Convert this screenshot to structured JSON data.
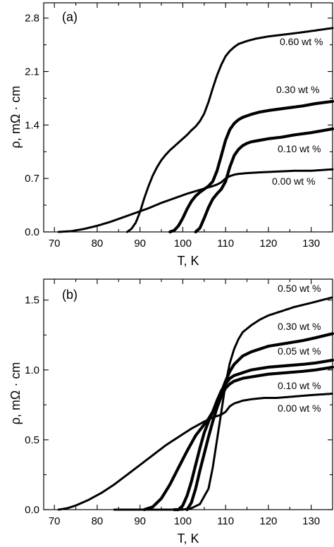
{
  "chart_data": [
    {
      "type": "line",
      "panel_tag": "(a)",
      "xlabel": "T, K",
      "ylabel": "ρ, mΩ · cm",
      "xlim": [
        67.5,
        135
      ],
      "ylim": [
        0,
        3.0
      ],
      "xticks": [
        70,
        80,
        90,
        100,
        110,
        120,
        130
      ],
      "yticks": [
        0.0,
        0.7,
        1.4,
        2.1,
        2.8
      ],
      "ytick_labels": [
        "0.0",
        "0.7",
        "1.4",
        "2.1",
        "2.8"
      ],
      "series": [
        {
          "name": "0.60 wt %",
          "x": [
            87,
            88,
            89,
            90,
            91,
            92,
            93,
            94,
            95,
            96,
            97,
            98,
            99,
            100,
            101,
            102,
            103,
            104,
            105,
            106,
            107,
            108,
            109,
            110,
            111,
            112,
            113,
            114,
            115,
            117,
            120,
            123,
            126,
            130,
            135
          ],
          "y": [
            0.0,
            0.04,
            0.12,
            0.26,
            0.44,
            0.6,
            0.74,
            0.85,
            0.94,
            1.01,
            1.07,
            1.12,
            1.17,
            1.22,
            1.27,
            1.33,
            1.38,
            1.45,
            1.55,
            1.7,
            1.88,
            2.05,
            2.19,
            2.3,
            2.37,
            2.42,
            2.46,
            2.48,
            2.5,
            2.53,
            2.56,
            2.58,
            2.6,
            2.63,
            2.67
          ]
        },
        {
          "name": "0.30 wt %",
          "x": [
            97,
            98,
            99,
            100,
            101,
            102,
            103,
            104,
            105,
            106,
            107,
            108,
            109,
            110,
            111,
            112,
            113,
            114,
            116,
            118,
            120,
            124,
            128,
            131,
            135
          ],
          "y": [
            0.0,
            0.02,
            0.08,
            0.18,
            0.3,
            0.4,
            0.47,
            0.52,
            0.56,
            0.6,
            0.66,
            0.8,
            1.0,
            1.2,
            1.34,
            1.42,
            1.47,
            1.5,
            1.54,
            1.57,
            1.59,
            1.62,
            1.65,
            1.68,
            1.71
          ]
        },
        {
          "name": "0.10 wt %",
          "x": [
            103,
            104,
            105,
            106,
            107,
            108,
            109,
            110,
            111,
            112,
            113,
            114,
            115,
            116,
            118,
            120,
            123,
            126,
            130,
            135
          ],
          "y": [
            0.0,
            0.05,
            0.18,
            0.32,
            0.43,
            0.5,
            0.56,
            0.66,
            0.85,
            1.0,
            1.08,
            1.13,
            1.16,
            1.18,
            1.2,
            1.22,
            1.24,
            1.27,
            1.3,
            1.35
          ]
        },
        {
          "name": "0.00 wt %",
          "x": [
            71,
            74,
            77,
            80,
            83,
            86,
            89,
            92,
            95,
            98,
            101,
            104,
            107,
            108,
            109,
            110,
            111,
            112,
            113,
            115,
            118,
            122,
            126,
            130,
            135
          ],
          "y": [
            0.0,
            0.01,
            0.04,
            0.08,
            0.13,
            0.19,
            0.25,
            0.31,
            0.38,
            0.44,
            0.5,
            0.55,
            0.6,
            0.62,
            0.65,
            0.7,
            0.73,
            0.75,
            0.76,
            0.77,
            0.78,
            0.79,
            0.8,
            0.8,
            0.82
          ]
        }
      ]
    },
    {
      "type": "line",
      "panel_tag": "(b)",
      "xlabel": "T, K",
      "ylabel": "ρ, mΩ · cm",
      "xlim": [
        67.5,
        135
      ],
      "ylim": [
        0,
        1.65
      ],
      "xticks": [
        70,
        80,
        90,
        100,
        110,
        120,
        130
      ],
      "yticks": [
        0.0,
        0.5,
        1.0,
        1.5
      ],
      "ytick_labels": [
        "0.0",
        "0.5",
        "1.0",
        "1.5"
      ],
      "series": [
        {
          "name": "0.50 wt %",
          "x": [
            84,
            88,
            92,
            95,
            98,
            100,
            102,
            104,
            106,
            107,
            108,
            109,
            110,
            111,
            112,
            113,
            114,
            116,
            118,
            120,
            123,
            126,
            130,
            135
          ],
          "y": [
            0.0,
            0.0,
            0.0,
            0.0,
            0.0,
            0.0,
            0.01,
            0.04,
            0.15,
            0.3,
            0.5,
            0.7,
            0.9,
            1.05,
            1.15,
            1.22,
            1.27,
            1.32,
            1.36,
            1.39,
            1.42,
            1.45,
            1.48,
            1.52
          ]
        },
        {
          "name": "0.30 wt %",
          "x": [
            91,
            93,
            95,
            97,
            99,
            101,
            103,
            105,
            106,
            107,
            108,
            109,
            110,
            111,
            112,
            114,
            116,
            118,
            120,
            124,
            128,
            131,
            135
          ],
          "y": [
            0.0,
            0.02,
            0.08,
            0.18,
            0.3,
            0.42,
            0.53,
            0.61,
            0.65,
            0.7,
            0.76,
            0.84,
            0.92,
            0.99,
            1.04,
            1.1,
            1.13,
            1.15,
            1.17,
            1.19,
            1.21,
            1.23,
            1.26
          ]
        },
        {
          "name": "0.05 wt %",
          "x": [
            98,
            99,
            100,
            101,
            102,
            103,
            104,
            105,
            106,
            107,
            108,
            109,
            110,
            111,
            112,
            114,
            116,
            118,
            120,
            124,
            128,
            131,
            135
          ],
          "y": [
            0.0,
            0.0,
            0.03,
            0.1,
            0.2,
            0.32,
            0.44,
            0.55,
            0.63,
            0.7,
            0.78,
            0.85,
            0.9,
            0.94,
            0.96,
            0.98,
            1.0,
            1.01,
            1.02,
            1.03,
            1.04,
            1.05,
            1.07
          ]
        },
        {
          "name": "0.10 wt %",
          "x": [
            101,
            102,
            103,
            104,
            105,
            106,
            107,
            108,
            109,
            110,
            111,
            112,
            114,
            116,
            118,
            120,
            124,
            128,
            131,
            135
          ],
          "y": [
            0.0,
            0.05,
            0.15,
            0.28,
            0.4,
            0.52,
            0.63,
            0.73,
            0.81,
            0.87,
            0.9,
            0.92,
            0.94,
            0.95,
            0.96,
            0.97,
            0.98,
            0.99,
            1.0,
            1.02
          ]
        },
        {
          "name": "0.00 wt %",
          "x": [
            71,
            73,
            75,
            78,
            81,
            84,
            87,
            90,
            93,
            96,
            99,
            102,
            105,
            107,
            108,
            109,
            110,
            111,
            112,
            114,
            116,
            119,
            122,
            126,
            130,
            135
          ],
          "y": [
            0.0,
            0.01,
            0.03,
            0.07,
            0.12,
            0.18,
            0.25,
            0.32,
            0.39,
            0.46,
            0.52,
            0.58,
            0.63,
            0.66,
            0.67,
            0.68,
            0.7,
            0.74,
            0.76,
            0.78,
            0.79,
            0.8,
            0.8,
            0.81,
            0.82,
            0.83
          ]
        }
      ]
    }
  ]
}
